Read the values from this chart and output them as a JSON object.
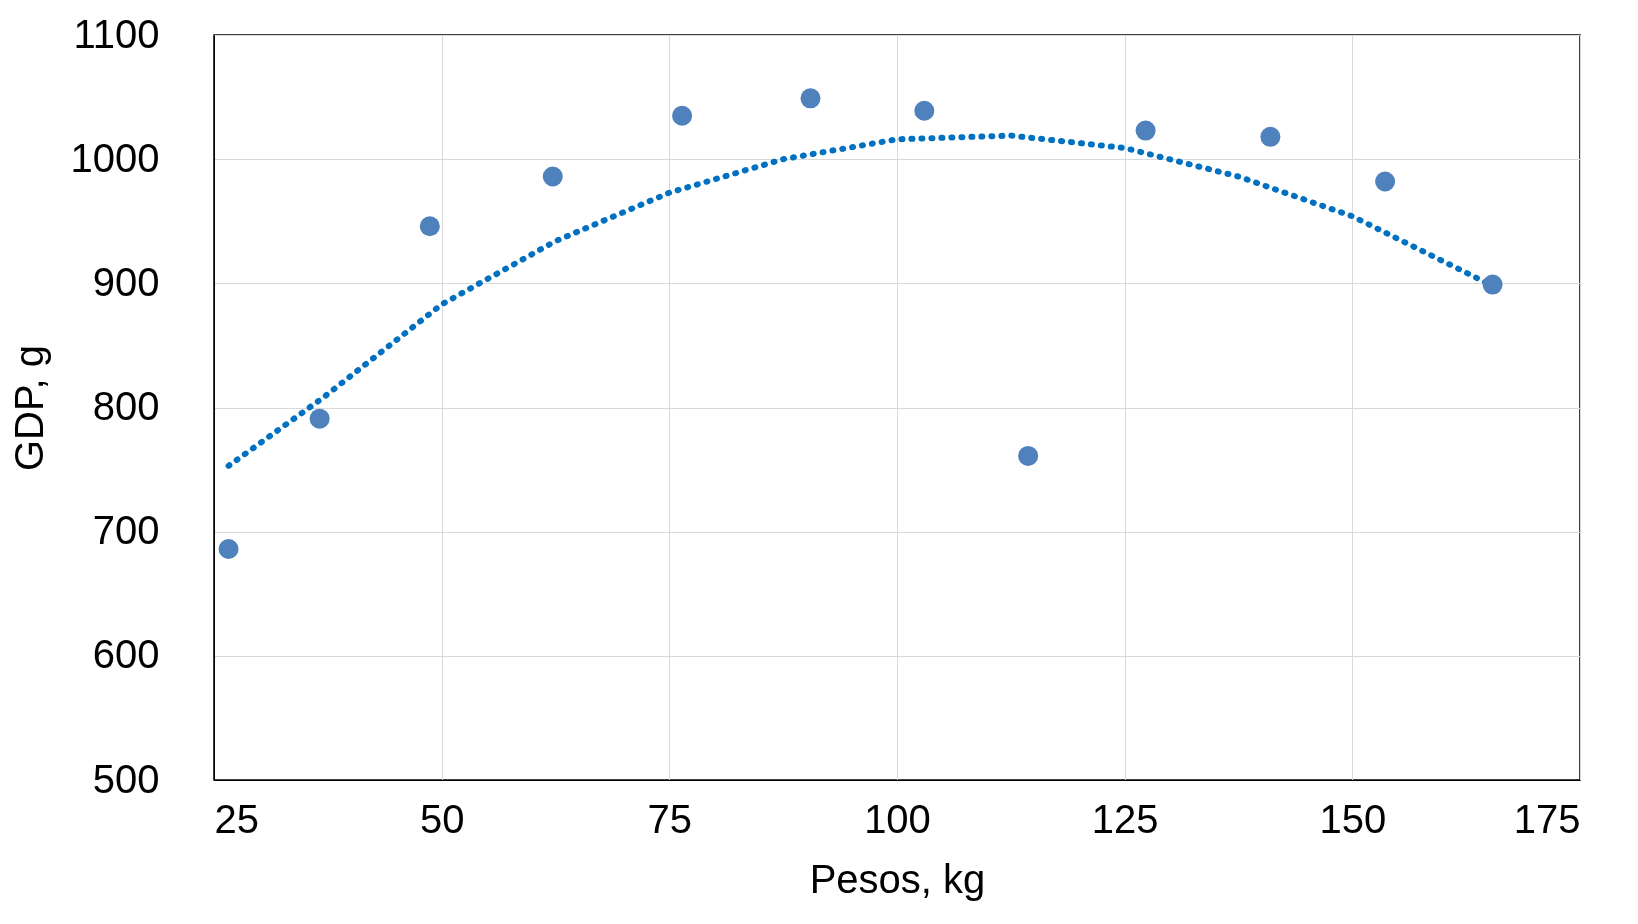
{
  "chart_data": {
    "type": "scatter",
    "xlabel": "Pesos, kg",
    "ylabel": "GDP, g",
    "xlim": [
      25,
      175
    ],
    "xticks": [
      25,
      50,
      75,
      100,
      125,
      150,
      175
    ],
    "ylim": [
      500,
      1100
    ],
    "yticks": [
      500,
      600,
      700,
      800,
      900,
      1000,
      1100
    ],
    "grid": true,
    "series": [
      {
        "type": "scatter",
        "color": "#4f81bd",
        "marker": "circle",
        "x": [
          26.6,
          36.6,
          48.7,
          62.2,
          76.4,
          90.5,
          103.0,
          114.4,
          127.3,
          141.0,
          153.6,
          165.4
        ],
        "values": [
          686,
          791,
          946,
          986,
          1035,
          1049,
          1039,
          761,
          1023,
          1018,
          982,
          899
        ]
      },
      {
        "type": "line",
        "color": "#0070c0",
        "marker": "none",
        "line_style": "dotted",
        "x": [
          26.6,
          37,
          50,
          62.5,
          75,
          87.5,
          100,
          112.5,
          125,
          137.5,
          150,
          165.4
        ],
        "values": [
          753,
          808,
          883,
          934,
          973,
          1000,
          1016,
          1019,
          1009,
          986,
          954,
          898
        ]
      }
    ]
  }
}
